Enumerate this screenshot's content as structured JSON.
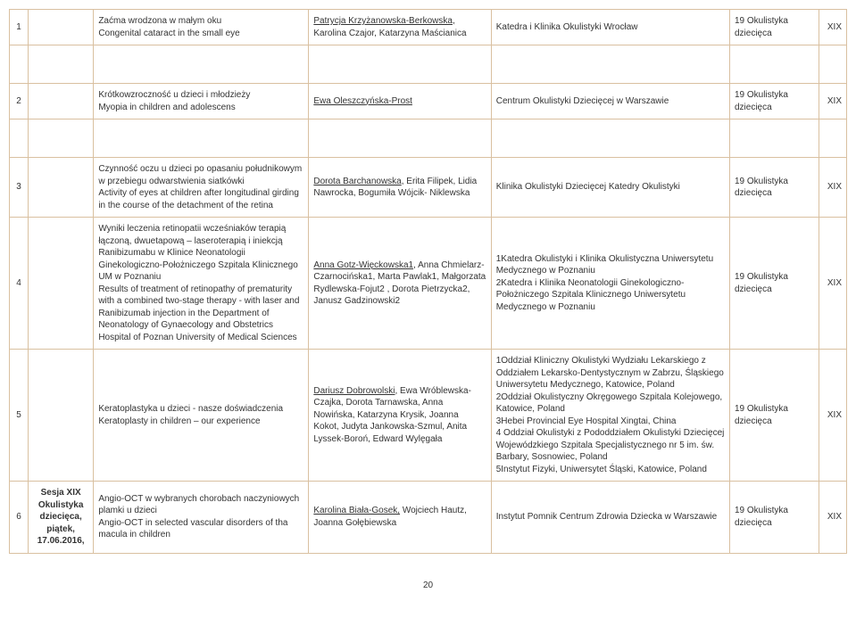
{
  "page_number": "20",
  "colors": {
    "border": "#d9c0a0",
    "bg": "#ffffff",
    "text": "#333333"
  },
  "rows": [
    {
      "num": "1",
      "session": "",
      "title_pl": "Zaćma wrodzona w małym oku",
      "title_en": "Congenital cataract in the small eye",
      "author_underline": "Patrycja Krzyżanowska-Berkowska",
      "authors_rest": ", Karolina Czajor, Katarzyna Maścianica",
      "affil": "Katedra i Klinika Okulistyki Wrocław",
      "session2": "19 Okulistyka dziecięca",
      "edition": "XIX"
    },
    {
      "num": "2",
      "session": "",
      "title_pl": "Krótkowzroczność u dzieci i młodzieży",
      "title_en": "Myopia in children and adolescens",
      "author_underline": "Ewa Oleszczyńska-Prost",
      "authors_rest": "",
      "affil": "Centrum Okulistyki Dziecięcej w Warszawie",
      "session2": "19 Okulistyka dziecięca",
      "edition": "XIX"
    },
    {
      "num": "3",
      "session": "",
      "title_pl": "Czynność oczu u dzieci po opasaniu południkowym w przebiegu odwarstwienia siatkówki",
      "title_en": "Activity of eyes at children after longitudinal girding in the course of the detachment of the retina",
      "author_underline": "Dorota Barchanowska",
      "authors_rest": ", Erita Filipek, Lidia Nawrocka, Bogumiła Wójcik- Niklewska",
      "affil": "Klinika Okulistyki Dziecięcej Katedry Okulistyki",
      "session2": "19 Okulistyka dziecięca",
      "edition": "XIX"
    },
    {
      "num": "4",
      "session": "",
      "title_pl": "Wyniki leczenia retinopatii wcześniaków terapią łączoną, dwuetapową – laseroterapią i iniekcją Ranibizumabu w Klinice Neonatologii Ginekologiczno-Położniczego Szpitala Klinicznego UM w Poznaniu",
      "title_en": "Results of treatment of retinopathy of prematurity with a combined two-stage therapy - with laser and Ranibizumab injection in the Department of Neonatology of Gynaecology and Obstetrics Hospital of Poznan University of Medical Sciences",
      "author_underline": "Anna Gotz-Więckowska1",
      "authors_rest": ", Anna Chmielarz-Czarnocińska1, Marta Pawlak1, Małgorzata Rydlewska-Fojut2 , Dorota Pietrzycka2, Janusz Gadzinowski2",
      "affil": "1Katedra Okulistyki i Klinika Okulistyczna Uniwersytetu Medycznego w Poznaniu\n2Katedra i Klinika Neonatologii Ginekologiczno-Położniczego Szpitala Klinicznego Uniwersytetu Medycznego w Poznaniu",
      "session2": "19 Okulistyka dziecięca",
      "edition": "XIX"
    },
    {
      "num": "5",
      "session": "",
      "title_pl": "Keratoplastyka u dzieci - nasze doświadczenia",
      "title_en": "Keratoplasty in children – our experience",
      "author_underline": "Dariusz Dobrowolski",
      "authors_rest": ", Ewa Wróblewska-Czajka, Dorota Tarnawska, Anna Nowińska, Katarzyna Krysik, Joanna Kokot, Judyta Jankowska-Szmul, Anita Lyssek-Boroń, Edward Wylęgała",
      "affil": "1Oddział Kliniczny Okulistyki Wydziału Lekarskiego z Oddziałem Lekarsko-Dentystycznym w Zabrzu, Śląskiego Uniwersytetu Medycznego, Katowice, Poland\n2Oddział Okulistyczny Okręgowego Szpitala Kolejowego, Katowice, Poland\n3Hebei Provincial Eye Hospital Xingtai, China\n4 Oddział Okulistyki z Pododdziałem Okulistyki Dziecięcej Wojewódzkiego Szpitala Specjalistycznego nr 5 im. św. Barbary, Sosnowiec, Poland\n5Instytut Fizyki, Uniwersytet Śląski, Katowice, Poland",
      "session2": "19 Okulistyka dziecięca",
      "edition": "XIX"
    },
    {
      "num": "6",
      "session": "Sesja XIX Okulistyka dziecięca, piątek, 17.06.2016,",
      "title_pl": "Angio-OCT w wybranych chorobach naczyniowych plamki u dzieci",
      "title_en": "Angio-OCT in selected vascular disorders of tha macula in children",
      "author_underline": "Karolina Biała-Gosek,",
      "authors_rest": " Wojciech Hautz, Joanna Gołębiewska",
      "affil": "Instytut Pomnik Centrum Zdrowia Dziecka w Warszawie",
      "session2": "19 Okulistyka dziecięca",
      "edition": "XIX"
    }
  ]
}
